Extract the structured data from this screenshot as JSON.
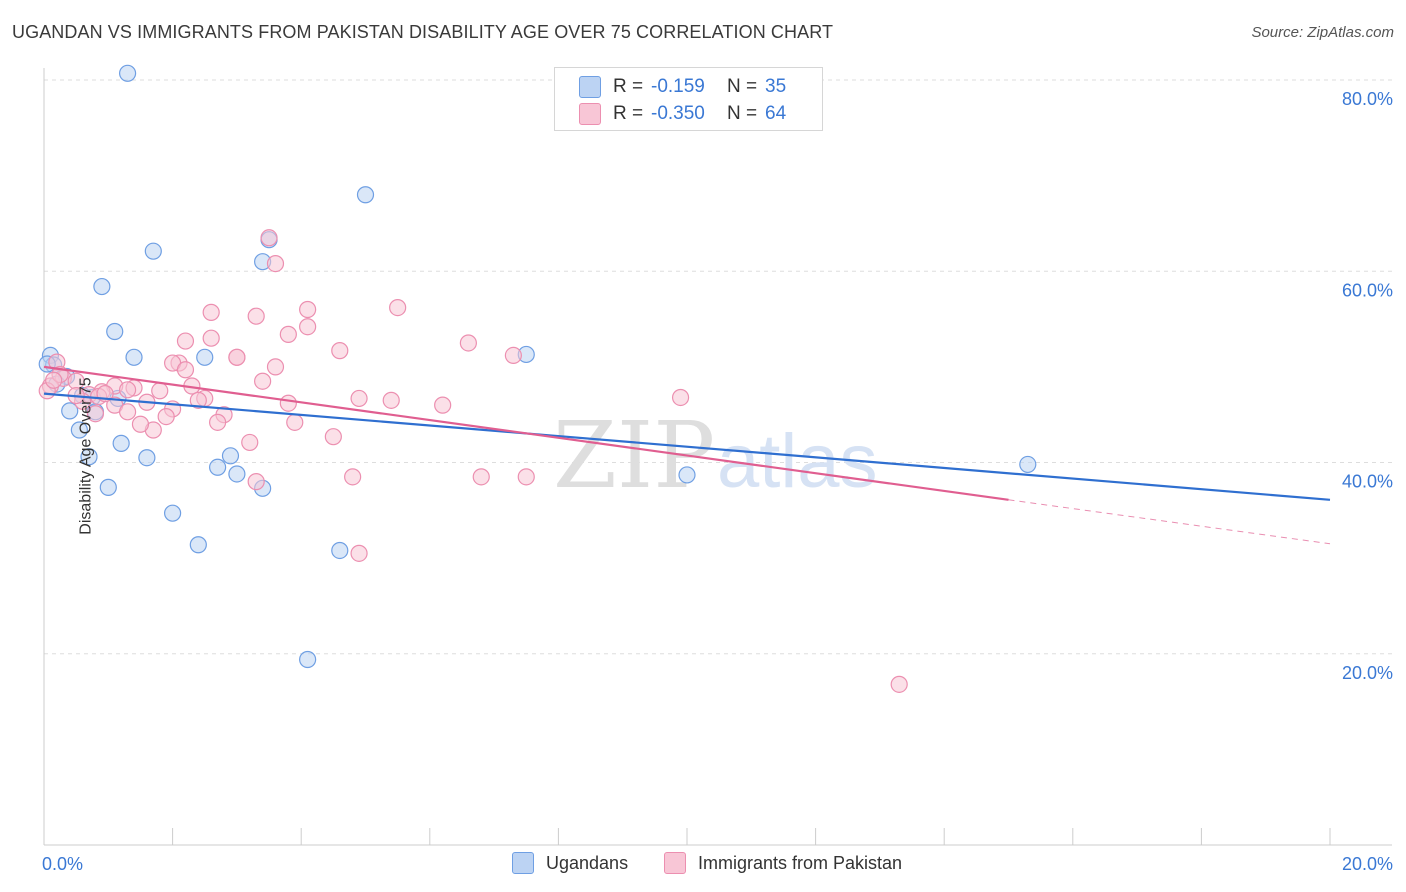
{
  "title": "UGANDAN VS IMMIGRANTS FROM PAKISTAN DISABILITY AGE OVER 75 CORRELATION CHART",
  "source": "Source: ZipAtlas.com",
  "watermark": {
    "zip": "ZIP",
    "atlas": "atlas"
  },
  "legend": {
    "rows": [
      {
        "r_label": "R =",
        "r_value": "-0.159",
        "n_label": "N =",
        "n_value": "35",
        "color": "#a9c8f0"
      },
      {
        "r_label": "R =",
        "r_value": "-0.350",
        "n_label": "N =",
        "n_value": "64",
        "color": "#f6b8cc"
      }
    ]
  },
  "bottom_legend": [
    "Ugandans",
    "Immigrants from Pakistan"
  ],
  "chart_data": {
    "type": "scatter",
    "title": "UGANDAN VS IMMIGRANTS FROM PAKISTAN DISABILITY AGE OVER 75 CORRELATION CHART",
    "xlabel": "",
    "ylabel": "Disability Age Over 75",
    "xlim": [
      0,
      20
    ],
    "ylim": [
      0,
      80
    ],
    "x_ticks": [
      "0.0%",
      "20.0%"
    ],
    "y_ticks": [
      "20.0%",
      "40.0%",
      "60.0%",
      "80.0%"
    ],
    "y_tick_values": [
      20,
      40,
      60,
      80
    ],
    "grid": true,
    "series": [
      {
        "name": "Ugandans",
        "color": "#6f9fe3",
        "fill": "#bcd3f3",
        "trend": {
          "x": [
            0,
            20
          ],
          "y": [
            47.2,
            36.1
          ],
          "color": "#2f6fd0"
        },
        "points": [
          [
            1.3,
            80.7
          ],
          [
            5.0,
            68.0
          ],
          [
            3.5,
            63.3
          ],
          [
            3.4,
            61.0
          ],
          [
            1.7,
            62.1
          ],
          [
            0.9,
            58.4
          ],
          [
            1.1,
            53.7
          ],
          [
            0.1,
            51.2
          ],
          [
            1.4,
            51.0
          ],
          [
            2.5,
            51.0
          ],
          [
            7.5,
            51.3
          ],
          [
            0.15,
            50.2
          ],
          [
            0.35,
            49.0
          ],
          [
            0.2,
            48.2
          ],
          [
            0.6,
            47.0
          ],
          [
            0.75,
            46.8
          ],
          [
            1.15,
            46.7
          ],
          [
            0.4,
            45.4
          ],
          [
            0.8,
            45.3
          ],
          [
            0.55,
            43.4
          ],
          [
            1.2,
            42.0
          ],
          [
            0.7,
            40.6
          ],
          [
            1.6,
            40.5
          ],
          [
            2.9,
            40.7
          ],
          [
            2.7,
            39.5
          ],
          [
            3.0,
            38.8
          ],
          [
            10.0,
            38.7
          ],
          [
            15.3,
            39.8
          ],
          [
            1.0,
            37.4
          ],
          [
            3.4,
            37.3
          ],
          [
            2.0,
            34.7
          ],
          [
            2.4,
            31.4
          ],
          [
            4.6,
            30.8
          ],
          [
            4.1,
            19.4
          ],
          [
            0.05,
            50.3
          ]
        ]
      },
      {
        "name": "Immigrants from Pakistan",
        "color": "#ec8fb0",
        "fill": "#f8c6d6",
        "trend": {
          "x": [
            0,
            15
          ],
          "y": [
            50.0,
            36.1
          ],
          "color": "#e05e90"
        },
        "trend_dashed": {
          "x": [
            15,
            20
          ],
          "y": [
            36.1,
            31.5
          ]
        },
        "points": [
          [
            3.5,
            63.5
          ],
          [
            3.6,
            60.8
          ],
          [
            5.5,
            56.2
          ],
          [
            4.1,
            56.0
          ],
          [
            2.6,
            55.7
          ],
          [
            3.3,
            55.3
          ],
          [
            4.1,
            54.2
          ],
          [
            3.8,
            53.4
          ],
          [
            2.6,
            53.0
          ],
          [
            2.2,
            52.7
          ],
          [
            6.6,
            52.5
          ],
          [
            4.6,
            51.7
          ],
          [
            3.0,
            51.0
          ],
          [
            3.0,
            51.0
          ],
          [
            7.3,
            51.2
          ],
          [
            2.1,
            50.4
          ],
          [
            2.0,
            50.4
          ],
          [
            3.6,
            50.0
          ],
          [
            0.2,
            50.5
          ],
          [
            0.3,
            48.8
          ],
          [
            3.4,
            48.5
          ],
          [
            0.5,
            48.5
          ],
          [
            1.1,
            48.0
          ],
          [
            2.3,
            48.0
          ],
          [
            1.4,
            47.8
          ],
          [
            1.3,
            47.6
          ],
          [
            1.8,
            47.5
          ],
          [
            0.9,
            47.4
          ],
          [
            0.7,
            47.1
          ],
          [
            0.85,
            46.9
          ],
          [
            4.9,
            46.7
          ],
          [
            5.4,
            46.5
          ],
          [
            9.9,
            46.8
          ],
          [
            2.5,
            46.7
          ],
          [
            2.4,
            46.5
          ],
          [
            0.6,
            46.4
          ],
          [
            1.6,
            46.3
          ],
          [
            3.8,
            46.2
          ],
          [
            1.1,
            46.0
          ],
          [
            2.0,
            45.6
          ],
          [
            6.2,
            46.0
          ],
          [
            1.3,
            45.3
          ],
          [
            0.8,
            45.1
          ],
          [
            1.9,
            44.8
          ],
          [
            2.8,
            45.0
          ],
          [
            2.7,
            44.2
          ],
          [
            3.9,
            44.2
          ],
          [
            1.7,
            43.4
          ],
          [
            4.5,
            42.7
          ],
          [
            3.2,
            42.1
          ],
          [
            0.1,
            48.0
          ],
          [
            0.05,
            47.5
          ],
          [
            0.25,
            49.2
          ],
          [
            1.5,
            44.0
          ],
          [
            0.15,
            48.6
          ],
          [
            0.5,
            47.0
          ],
          [
            4.8,
            38.5
          ],
          [
            6.8,
            38.5
          ],
          [
            7.5,
            38.5
          ],
          [
            3.3,
            38.0
          ],
          [
            4.9,
            30.5
          ],
          [
            13.3,
            16.8
          ],
          [
            2.2,
            49.7
          ],
          [
            0.95,
            47.2
          ]
        ]
      }
    ]
  }
}
